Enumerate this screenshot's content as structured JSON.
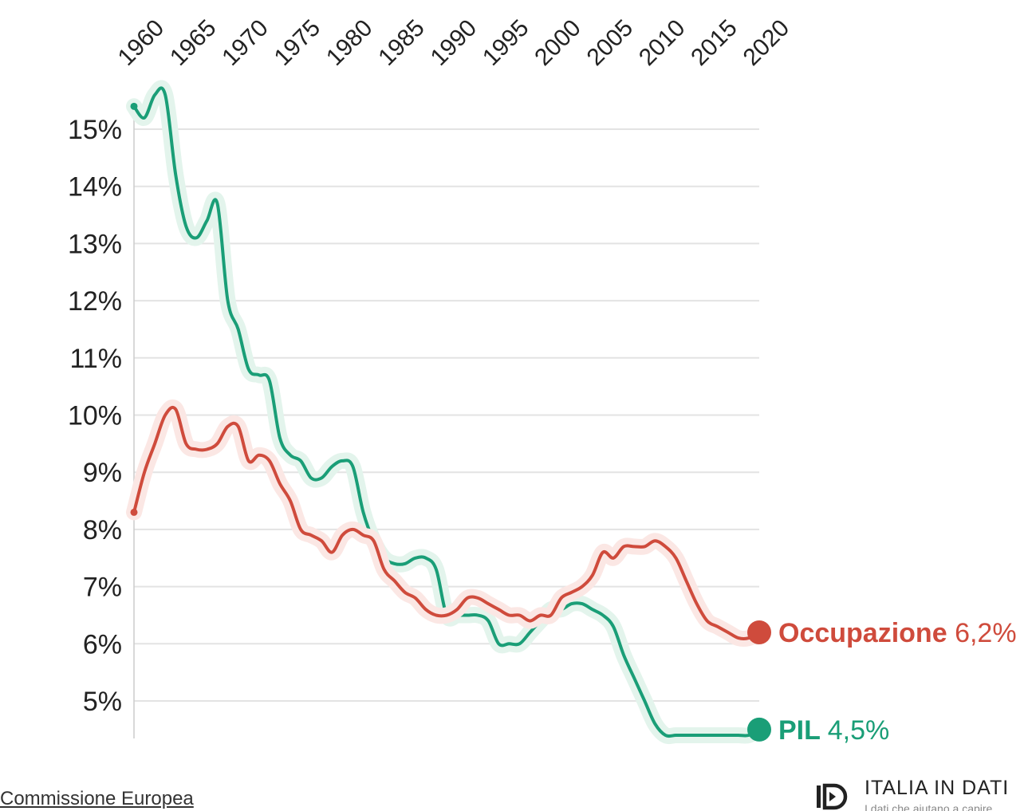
{
  "chart_data": {
    "type": "line",
    "x_ticks": [
      "1960",
      "1965",
      "1970",
      "1975",
      "1980",
      "1985",
      "1990",
      "1995",
      "2000",
      "2005",
      "2010",
      "2015",
      "2020"
    ],
    "y_ticks": [
      "5%",
      "6%",
      "7%",
      "8%",
      "9%",
      "10%",
      "11%",
      "12%",
      "13%",
      "14%",
      "15%"
    ],
    "y_tick_values": [
      5,
      6,
      7,
      8,
      9,
      10,
      11,
      12,
      13,
      14,
      15
    ],
    "xlim": [
      1960,
      2020
    ],
    "ylim": [
      4.3,
      15.8
    ],
    "grid": "horizontal",
    "series": [
      {
        "name": "PIL",
        "end_label": "4,5%",
        "color": "#1a9e77",
        "halo": "#e3f4ec",
        "x": [
          1960,
          1961,
          1962,
          1963,
          1964,
          1965,
          1966,
          1967,
          1968,
          1969,
          1970,
          1971,
          1972,
          1973,
          1974,
          1975,
          1976,
          1977,
          1978,
          1979,
          1980,
          1981,
          1982,
          1983,
          1984,
          1985,
          1986,
          1987,
          1988,
          1989,
          1990,
          1991,
          1992,
          1993,
          1994,
          1995,
          1996,
          1997,
          1998,
          1999,
          2000,
          2001,
          2002,
          2003,
          2004,
          2005,
          2006,
          2007,
          2008,
          2009,
          2010,
          2011,
          2012,
          2013,
          2014,
          2015,
          2016,
          2017,
          2018,
          2019,
          2020
        ],
        "y": [
          15.4,
          15.2,
          15.6,
          15.6,
          14.2,
          13.3,
          13.1,
          13.4,
          13.7,
          12.0,
          11.5,
          10.8,
          10.7,
          10.6,
          9.6,
          9.3,
          9.2,
          8.9,
          8.9,
          9.1,
          9.2,
          9.1,
          8.3,
          7.8,
          7.5,
          7.4,
          7.4,
          7.5,
          7.5,
          7.3,
          6.5,
          6.5,
          6.5,
          6.5,
          6.4,
          6.0,
          6.0,
          6.0,
          6.2,
          6.4,
          6.6,
          6.6,
          6.7,
          6.7,
          6.6,
          6.5,
          6.3,
          5.8,
          5.4,
          5.0,
          4.6,
          4.4,
          4.4,
          4.4,
          4.4,
          4.4,
          4.4,
          4.4,
          4.4,
          4.4,
          4.5
        ]
      },
      {
        "name": "Occupazione",
        "end_label": "6,2%",
        "color": "#cf4b3c",
        "halo": "#fbe7e4",
        "x": [
          1960,
          1961,
          1962,
          1963,
          1964,
          1965,
          1966,
          1967,
          1968,
          1969,
          1970,
          1971,
          1972,
          1973,
          1974,
          1975,
          1976,
          1977,
          1978,
          1979,
          1980,
          1981,
          1982,
          1983,
          1984,
          1985,
          1986,
          1987,
          1988,
          1989,
          1990,
          1991,
          1992,
          1993,
          1994,
          1995,
          1996,
          1997,
          1998,
          1999,
          2000,
          2001,
          2002,
          2003,
          2004,
          2005,
          2006,
          2007,
          2008,
          2009,
          2010,
          2011,
          2012,
          2013,
          2014,
          2015,
          2016,
          2017,
          2018,
          2019,
          2020
        ],
        "y": [
          8.3,
          9.0,
          9.5,
          10.0,
          10.1,
          9.5,
          9.4,
          9.4,
          9.5,
          9.8,
          9.8,
          9.2,
          9.3,
          9.2,
          8.8,
          8.5,
          8.0,
          7.9,
          7.8,
          7.6,
          7.9,
          8.0,
          7.9,
          7.8,
          7.3,
          7.1,
          6.9,
          6.8,
          6.6,
          6.5,
          6.5,
          6.6,
          6.8,
          6.8,
          6.7,
          6.6,
          6.5,
          6.5,
          6.4,
          6.5,
          6.5,
          6.8,
          6.9,
          7.0,
          7.2,
          7.6,
          7.5,
          7.7,
          7.7,
          7.7,
          7.8,
          7.7,
          7.5,
          7.1,
          6.7,
          6.4,
          6.3,
          6.2,
          6.1,
          6.1,
          6.2
        ]
      }
    ]
  },
  "source": "Commissione Europea",
  "brand": {
    "name": "ITALIA IN DATI",
    "tagline": "I dati che aiutano a capire"
  }
}
